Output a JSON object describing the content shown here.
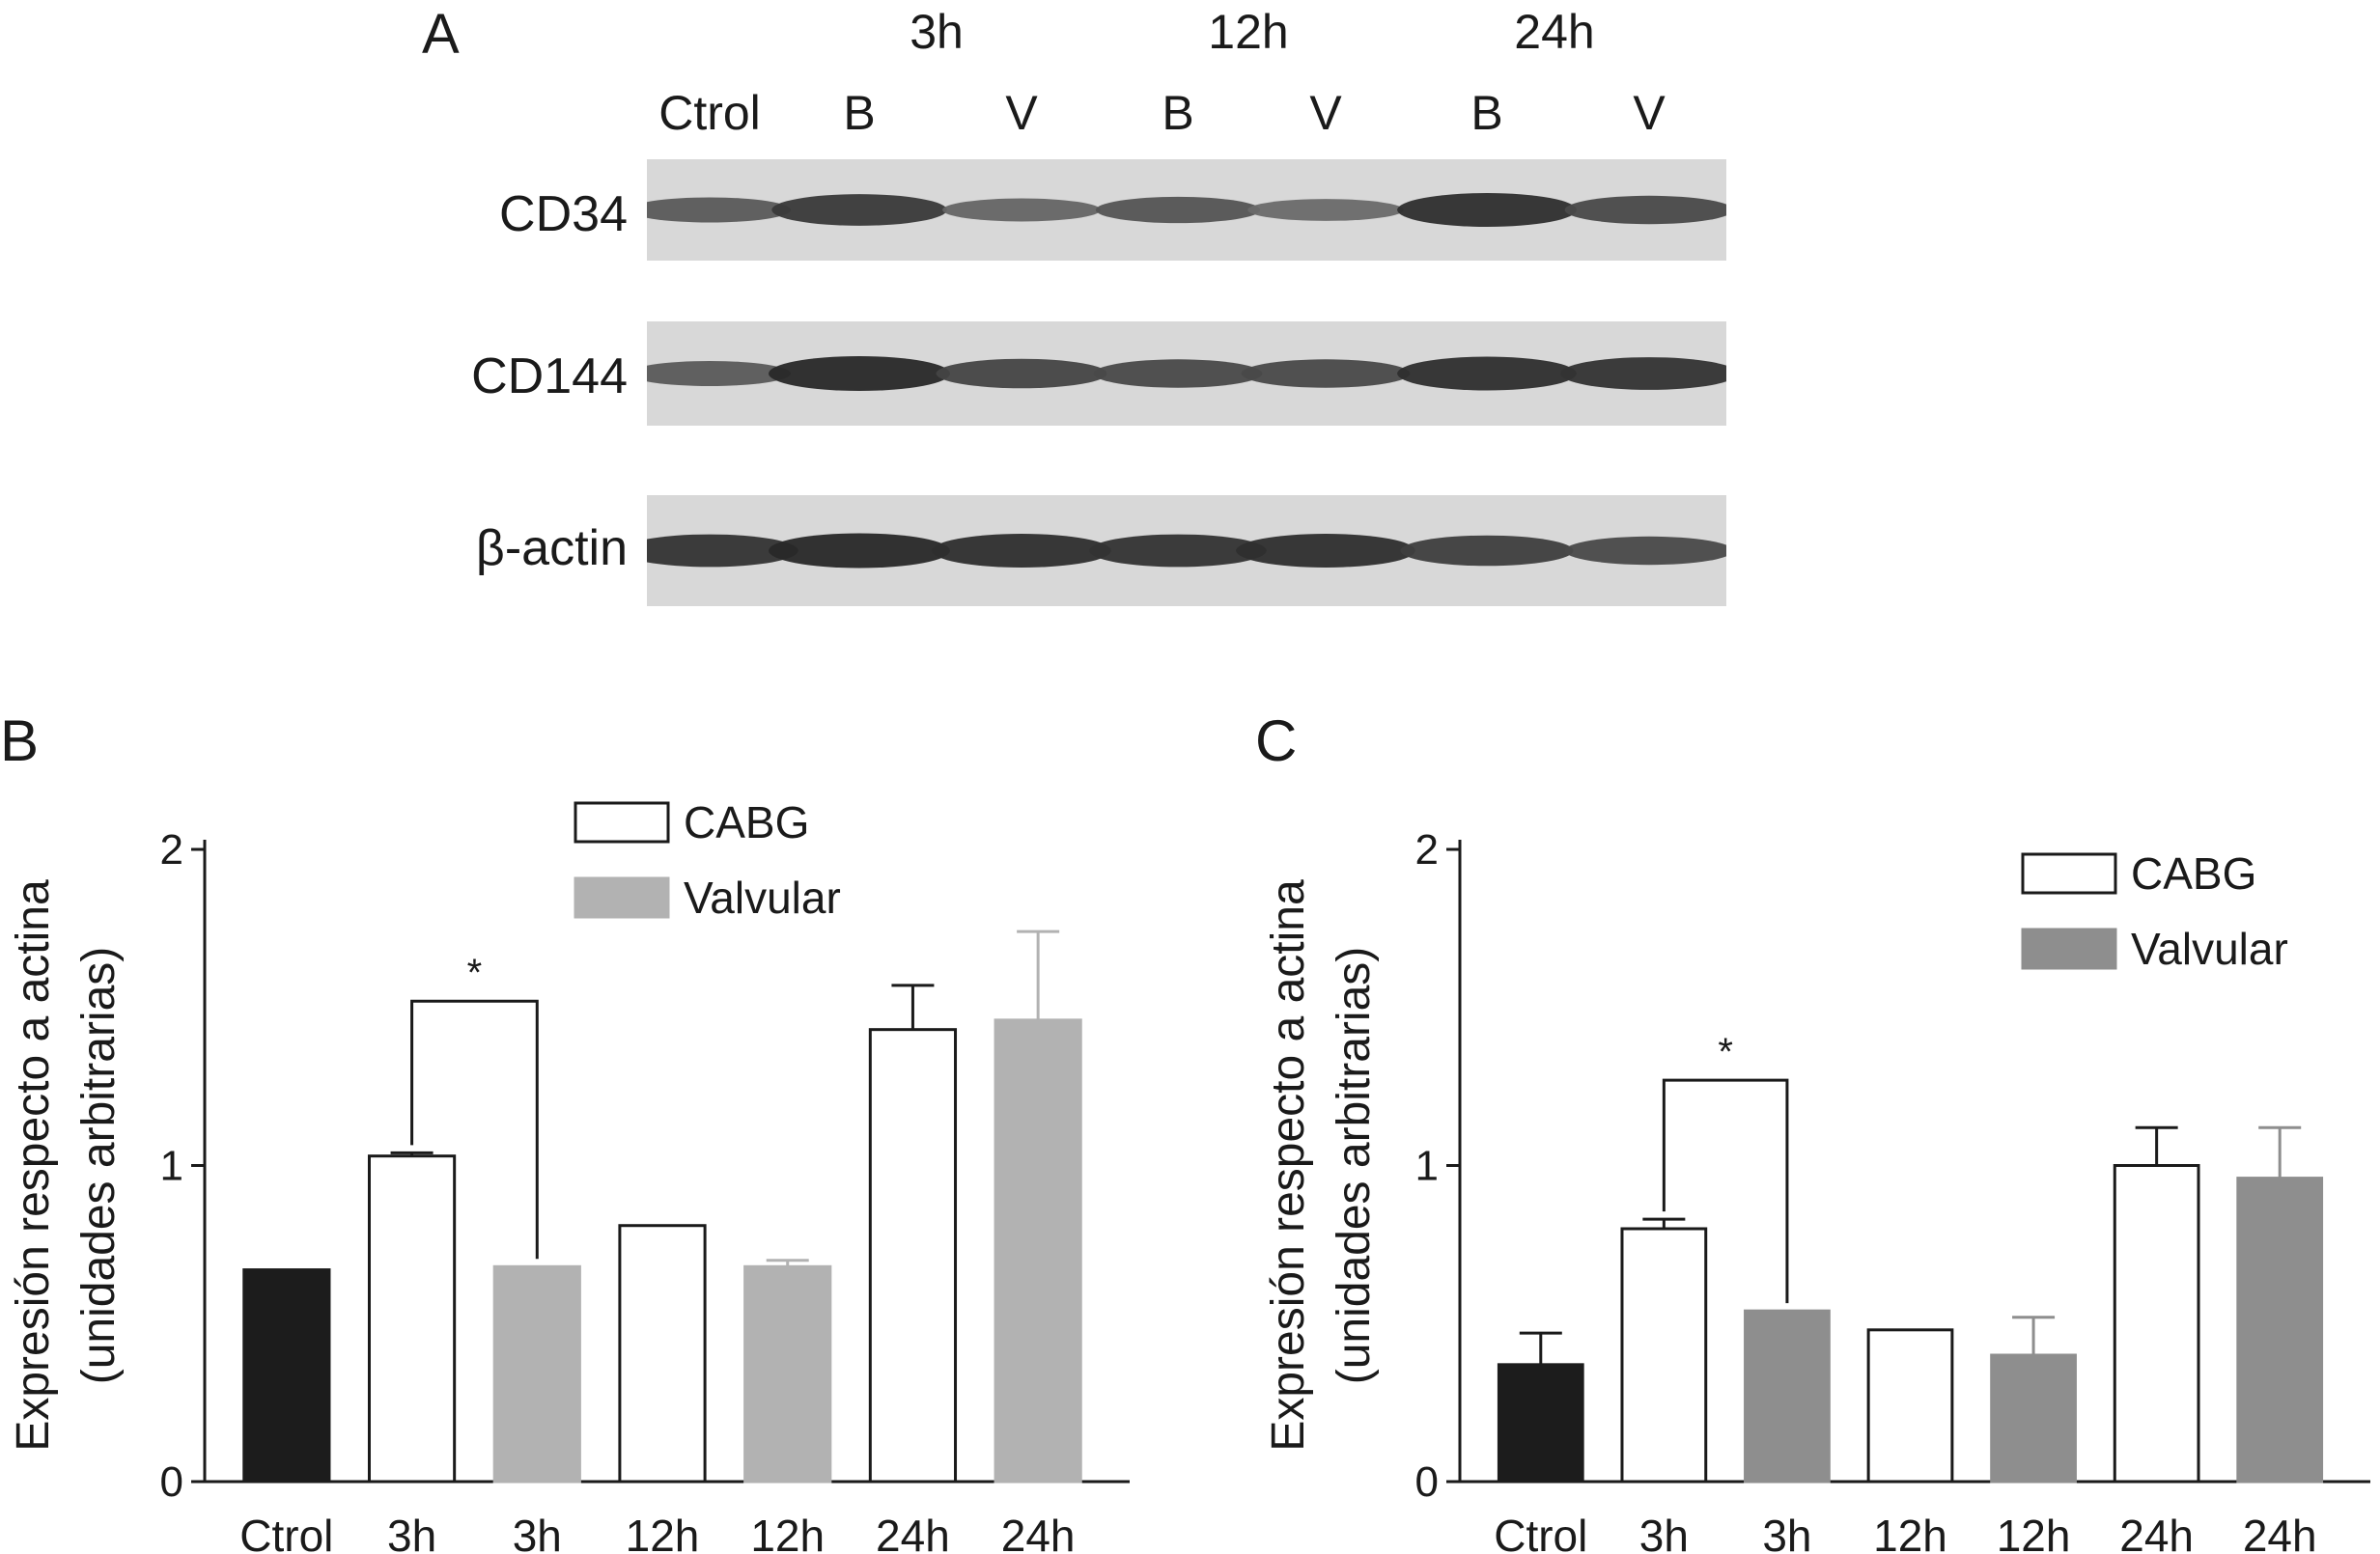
{
  "panel_a": {
    "letter": "A",
    "time_groups": [
      {
        "label": "3h"
      },
      {
        "label": "12h"
      },
      {
        "label": "24h"
      }
    ],
    "lanes": [
      "Ctrol",
      "B",
      "V",
      "B",
      "V",
      "B",
      "V"
    ],
    "blots": [
      {
        "label": "CD34",
        "band_intensity": [
          0.55,
          0.85,
          0.45,
          0.6,
          0.4,
          0.95,
          0.7
        ]
      },
      {
        "label": "CD144",
        "band_intensity": [
          0.55,
          1.0,
          0.75,
          0.7,
          0.7,
          0.95,
          0.9
        ]
      },
      {
        "label": "β-actin",
        "band_intensity": [
          0.9,
          1.0,
          0.95,
          0.9,
          0.95,
          0.8,
          0.7
        ]
      }
    ],
    "colors": {
      "membrane": "#d8d8d8",
      "band": "#2e2e2e"
    }
  },
  "chart_data": [
    {
      "panel": "B",
      "type": "bar",
      "ylabel": "Expresión respecto a actina",
      "ylabel2": "(unidades arbitrarias)",
      "ylim": [
        0,
        2
      ],
      "yticks": [
        "0",
        "1",
        "2"
      ],
      "categories": [
        "Ctrol",
        "3h",
        "3h",
        "12h",
        "12h",
        "24h",
        "24h"
      ],
      "values": [
        0.67,
        1.03,
        0.68,
        0.81,
        0.68,
        1.43,
        1.46
      ],
      "errors": [
        0.0,
        0.01,
        0.0,
        0.0,
        0.02,
        0.14,
        0.28
      ],
      "groups": [
        "ctrol",
        "cabg",
        "valvular",
        "cabg",
        "valvular",
        "cabg",
        "valvular"
      ],
      "legend": [
        {
          "label": "CABG",
          "group": "cabg"
        },
        {
          "label": "Valvular",
          "group": "valvular"
        }
      ],
      "legend_position": "top-center",
      "colors": {
        "ctrol": "#1c1c1c",
        "cabg": "#ffffff",
        "valvular": "#b2b2b2"
      },
      "significance": {
        "from": 1,
        "to": 2,
        "label": "*",
        "height": 1.52
      }
    },
    {
      "panel": "C",
      "type": "bar",
      "ylabel": "Expresión respecto a actina",
      "ylabel2": "(unidades arbitrarias)",
      "ylim": [
        0,
        2
      ],
      "yticks": [
        "0",
        "1",
        "2"
      ],
      "categories": [
        "Ctrol",
        "3h",
        "3h",
        "12h",
        "12h",
        "24h",
        "24h"
      ],
      "values": [
        0.37,
        0.8,
        0.54,
        0.48,
        0.4,
        1.0,
        0.96
      ],
      "errors": [
        0.1,
        0.03,
        0.0,
        0.0,
        0.12,
        0.12,
        0.16
      ],
      "groups": [
        "ctrol",
        "cabg",
        "valvular",
        "cabg",
        "valvular",
        "cabg",
        "valvular"
      ],
      "legend": [
        {
          "label": "CABG",
          "group": "cabg"
        },
        {
          "label": "Valvular",
          "group": "valvular"
        }
      ],
      "legend_position": "top-right",
      "colors": {
        "ctrol": "#1c1c1c",
        "cabg": "#ffffff",
        "valvular": "#8e8e8e"
      },
      "significance": {
        "from": 1,
        "to": 2,
        "label": "*",
        "height": 1.27
      }
    }
  ]
}
